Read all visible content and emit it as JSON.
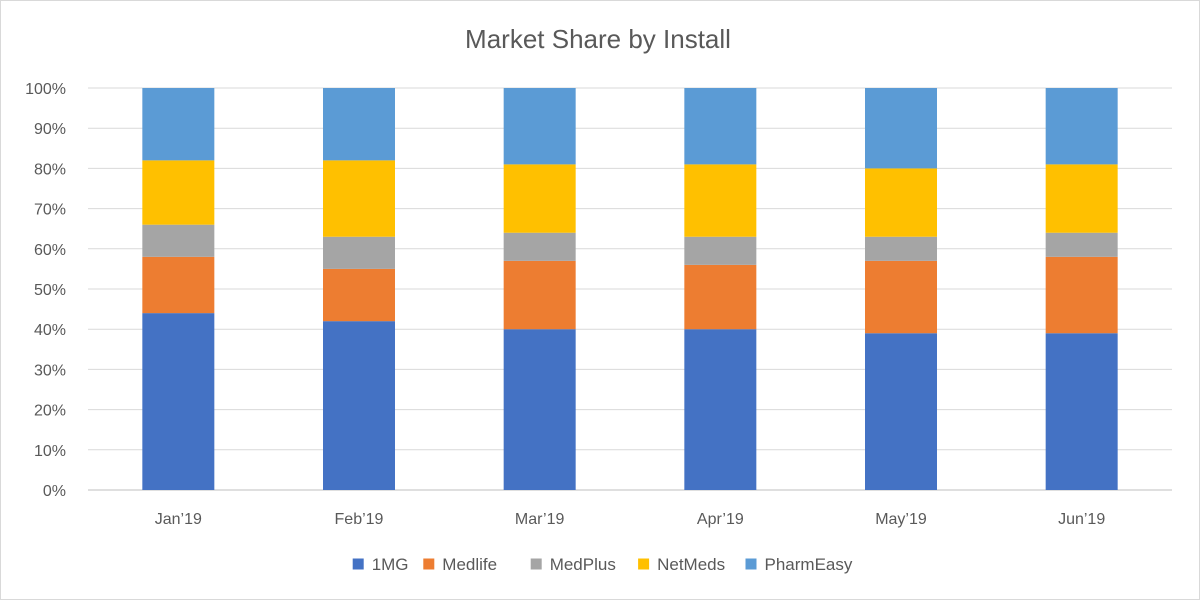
{
  "chart_data": {
    "type": "bar",
    "stacked": true,
    "percent_stacked": true,
    "title": "Market Share by Install",
    "categories": [
      "Jan’19",
      "Feb’19",
      "Mar’19",
      "Apr’19",
      "May’19",
      "Jun’19"
    ],
    "y_ticks": [
      "0%",
      "10%",
      "20%",
      "30%",
      "40%",
      "50%",
      "60%",
      "70%",
      "80%",
      "90%",
      "100%"
    ],
    "ylim": [
      0,
      100
    ],
    "grid": true,
    "legend_position": "bottom",
    "series": [
      {
        "name": "1MG",
        "color": "#4472C4",
        "values": [
          44,
          42,
          40,
          40,
          39,
          39
        ]
      },
      {
        "name": "Medlife",
        "color": "#ED7D31",
        "values": [
          14,
          13,
          17,
          16,
          18,
          19
        ]
      },
      {
        "name": "MedPlus",
        "color": "#A5A5A5",
        "values": [
          8,
          8,
          7,
          7,
          6,
          6
        ]
      },
      {
        "name": "NetMeds",
        "color": "#FFC000",
        "values": [
          16,
          19,
          17,
          18,
          17,
          17
        ]
      },
      {
        "name": "PharmEasy",
        "color": "#5B9BD5",
        "values": [
          18,
          18,
          19,
          19,
          20,
          19
        ]
      }
    ]
  }
}
